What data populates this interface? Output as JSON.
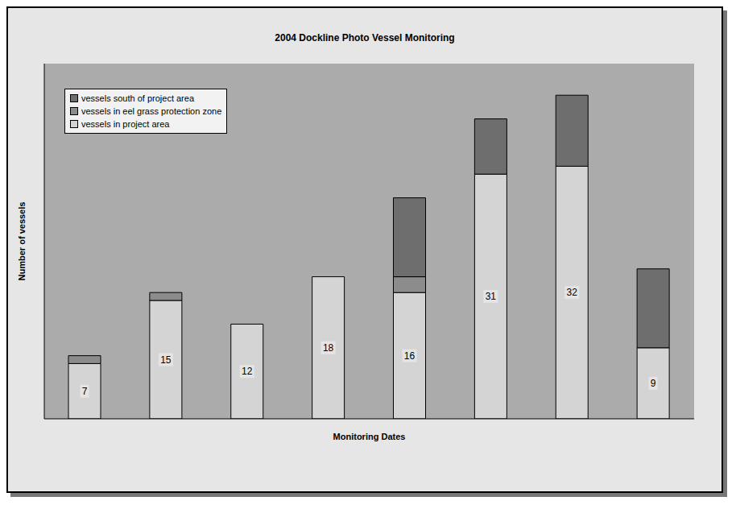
{
  "chart_data": {
    "type": "bar",
    "title": "2004 Dockline Photo Vessel Monitoring",
    "x_label": "Monitoring Dates",
    "y_label": "Number of vessels",
    "categories": [
      null,
      null,
      null,
      null,
      null,
      null,
      null,
      null
    ],
    "series": [
      {
        "name": "vessels in project area",
        "color": "#d4d4d4",
        "values": [
          7,
          15,
          12,
          18,
          16,
          31,
          32,
          9
        ],
        "data_labels": true
      },
      {
        "name": "vessels in eel grass protection zone",
        "color": "#8c8c8c",
        "values": [
          1,
          1,
          0,
          0,
          2,
          0,
          0,
          0
        ]
      },
      {
        "name": "vessels south of project area",
        "color": "#6e6e6e",
        "values": [
          0,
          0,
          0,
          0,
          10,
          7,
          9,
          10
        ]
      }
    ],
    "ylim": [
      0,
      45
    ],
    "yticks": [
      0,
      5,
      10,
      15,
      20,
      25,
      30,
      35,
      40,
      45
    ],
    "stacked": true,
    "grid": true,
    "legend": "upper left",
    "tick_labels": false
  }
}
